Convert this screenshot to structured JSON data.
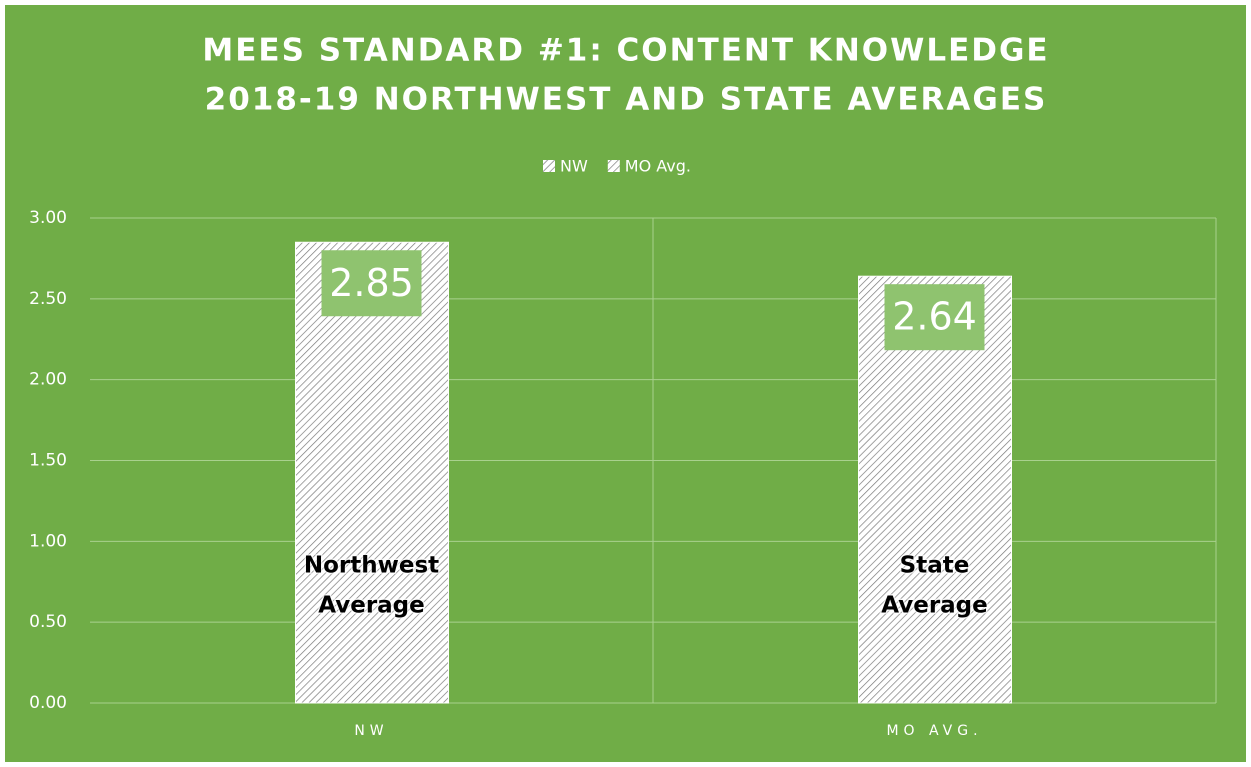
{
  "chart_data": {
    "type": "bar",
    "title": [
      "MEES STANDARD #1: CONTENT KNOWLEDGE",
      "2018-19 NORTHWEST AND STATE AVERAGES"
    ],
    "categories": [
      "NW",
      "MO AVG."
    ],
    "series": [
      {
        "name": "NW",
        "color": "#ffffff",
        "values": [
          2.85,
          null
        ]
      },
      {
        "name": "MO Avg.",
        "color": "#ffffff",
        "values": [
          null,
          2.64
        ]
      }
    ],
    "annotations": [
      [
        "Northwest",
        "Average"
      ],
      [
        "State",
        "Average"
      ]
    ],
    "ylim": [
      0,
      3
    ],
    "yticks": [
      {
        "value": 0,
        "label": "0.00"
      },
      {
        "value": 0.5,
        "label": "0.50"
      },
      {
        "value": 1,
        "label": "1.00"
      },
      {
        "value": 1.5,
        "label": "1.50"
      },
      {
        "value": 2,
        "label": "2.00"
      },
      {
        "value": 2.5,
        "label": "2.50"
      },
      {
        "value": 3,
        "label": "3.00"
      }
    ],
    "grid": true,
    "legend": "top",
    "background": "#70ad47"
  }
}
